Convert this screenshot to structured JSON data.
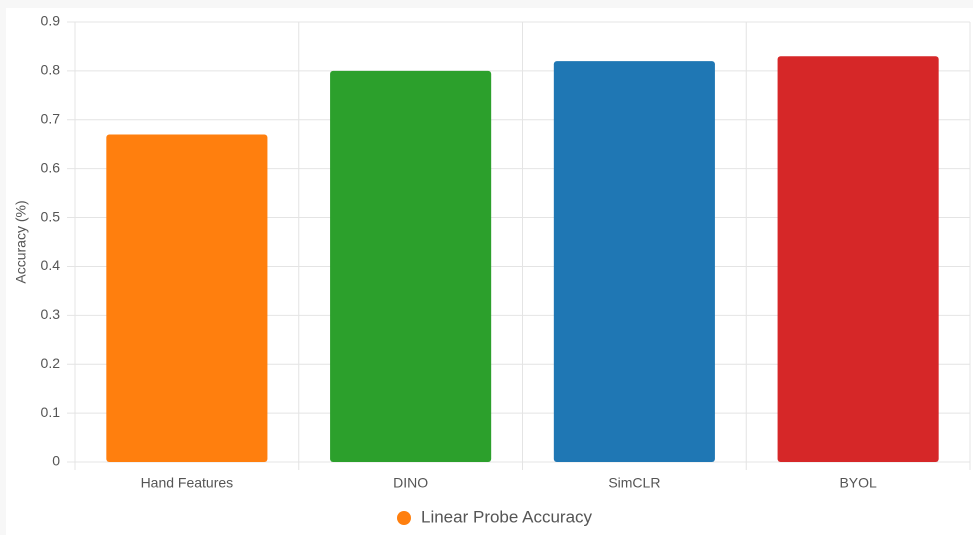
{
  "chart_data": {
    "type": "bar",
    "y_label": "Accuracy (%)",
    "categories": [
      "Hand Features",
      "DINO",
      "SimCLR",
      "BYOL"
    ],
    "series": [
      {
        "name": "Linear Probe Accuracy",
        "colors": [
          "#ff7f0e",
          "#2ca02c",
          "#1f77b4",
          "#d62728"
        ],
        "values": [
          0.67,
          0.8,
          0.82,
          0.83
        ]
      }
    ],
    "ylim": [
      0,
      0.9
    ],
    "yticks": [
      0,
      0.1,
      0.2,
      0.3,
      0.4,
      0.5,
      0.6,
      0.7,
      0.8,
      0.9
    ],
    "grid": true
  }
}
